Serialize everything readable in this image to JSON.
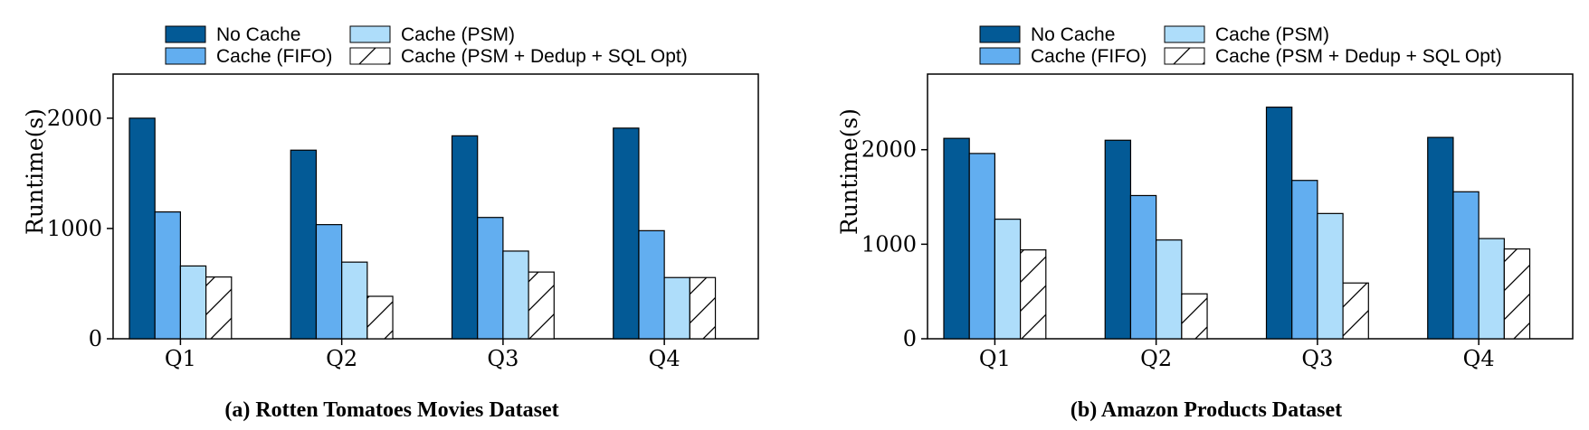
{
  "legend": {
    "items": [
      {
        "label": "No Cache",
        "color": "#035a96",
        "pattern": "solid"
      },
      {
        "label": "Cache (FIFO)",
        "color": "#62aef0",
        "pattern": "solid"
      },
      {
        "label": "Cache (PSM)",
        "color": "#aeddfa",
        "pattern": "solid"
      },
      {
        "label": "Cache (PSM + Dedup + SQL Opt)",
        "color": "#ffffff",
        "pattern": "hatch"
      }
    ]
  },
  "chart_data": [
    {
      "type": "bar",
      "caption": "(a) Rotten Tomatoes Movies Dataset",
      "ylabel": "Runtime(s)",
      "xlabel": "",
      "ylim": [
        0,
        2400
      ],
      "yticks": [
        0,
        1000,
        2000
      ],
      "categories": [
        "Q1",
        "Q2",
        "Q3",
        "Q4"
      ],
      "series": [
        {
          "name": "No Cache",
          "values": [
            2000,
            1710,
            1840,
            1910
          ]
        },
        {
          "name": "Cache (FIFO)",
          "values": [
            1150,
            1035,
            1100,
            980
          ]
        },
        {
          "name": "Cache (PSM)",
          "values": [
            660,
            695,
            795,
            555
          ]
        },
        {
          "name": "Cache (PSM + Dedup + SQL Opt)",
          "values": [
            560,
            385,
            605,
            555
          ]
        }
      ]
    },
    {
      "type": "bar",
      "caption": "(b) Amazon Products Dataset",
      "ylabel": "Runtime(s)",
      "xlabel": "",
      "ylim": [
        0,
        2800
      ],
      "yticks": [
        0,
        1000,
        2000
      ],
      "categories": [
        "Q1",
        "Q2",
        "Q3",
        "Q4"
      ],
      "series": [
        {
          "name": "No Cache",
          "values": [
            2120,
            2100,
            2450,
            2130
          ]
        },
        {
          "name": "Cache (FIFO)",
          "values": [
            1960,
            1515,
            1675,
            1555
          ]
        },
        {
          "name": "Cache (PSM)",
          "values": [
            1265,
            1045,
            1325,
            1060
          ]
        },
        {
          "name": "Cache (PSM + Dedup + SQL Opt)",
          "values": [
            940,
            475,
            590,
            950
          ]
        }
      ]
    }
  ]
}
